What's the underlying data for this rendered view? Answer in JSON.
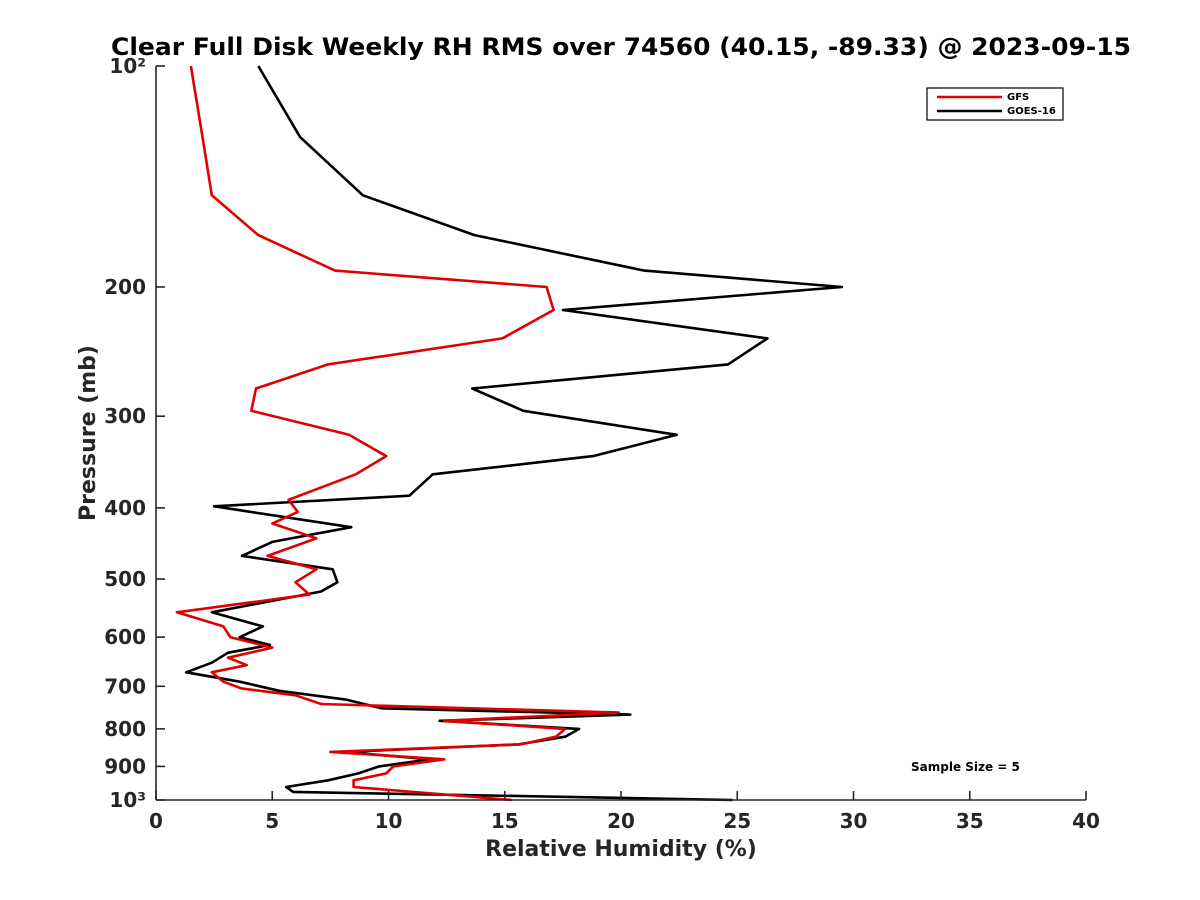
{
  "chart_data": {
    "type": "line",
    "title": "Clear Full Disk Weekly RH RMS over 74560 (40.15, -89.33) @ 2023-09-15",
    "xlabel": "Relative Humidity (%)",
    "ylabel": "Pressure (mb)",
    "xlim": [
      0,
      40
    ],
    "ylim": [
      100,
      1000
    ],
    "y_scale": "log",
    "y_reversed": true,
    "x_ticks": [
      0,
      5,
      10,
      15,
      20,
      25,
      30,
      35,
      40
    ],
    "x_tick_labels": [
      "0",
      "5",
      "10",
      "15",
      "20",
      "25",
      "30",
      "35",
      "40"
    ],
    "y_ticks": [
      100,
      200,
      300,
      400,
      500,
      600,
      700,
      800,
      900,
      1000
    ],
    "y_tick_labels": [
      "10²",
      "200",
      "300",
      "400",
      "500",
      "600",
      "700",
      "800",
      "900",
      "10³"
    ],
    "grid": false,
    "legend_position": "top-right",
    "annotation": "Sample Size = 5",
    "series": [
      {
        "name": "GFS",
        "color": "#e00000",
        "x": [
          1.5,
          2.0,
          2.4,
          4.4,
          7.7,
          16.8,
          17.1,
          14.9,
          7.4,
          4.3,
          4.1,
          8.3,
          9.9,
          8.6,
          5.7,
          6.1,
          5.0,
          6.9,
          4.8,
          6.9,
          6.0,
          6.6,
          0.9,
          2.9,
          3.2,
          5.0,
          3.1,
          3.9,
          2.4,
          2.9,
          3.7,
          6.0,
          7.1,
          19.9,
          12.4,
          17.6,
          17.2,
          15.7,
          7.5,
          12.4,
          10.2,
          9.9,
          8.5,
          8.5,
          15.3
        ],
        "y": [
          100,
          125,
          150,
          170,
          190,
          200,
          215,
          235,
          255,
          275,
          295,
          318,
          340,
          360,
          390,
          405,
          420,
          440,
          465,
          485,
          505,
          525,
          555,
          580,
          600,
          620,
          640,
          655,
          670,
          690,
          705,
          720,
          740,
          760,
          780,
          800,
          820,
          840,
          860,
          880,
          900,
          920,
          940,
          960,
          1000
        ]
      },
      {
        "name": "GOES-16",
        "color": "#000000",
        "x": [
          4.4,
          6.2,
          8.9,
          13.7,
          21.0,
          29.5,
          17.5,
          26.3,
          24.6,
          13.6,
          15.8,
          22.4,
          18.8,
          11.9,
          10.9,
          2.5,
          8.4,
          5.0,
          3.7,
          7.6,
          7.8,
          7.1,
          2.4,
          4.6,
          3.6,
          4.9,
          3.1,
          2.4,
          1.3,
          3.6,
          5.3,
          8.2,
          9.7,
          20.4,
          12.2,
          18.2,
          17.6,
          15.6,
          8.1,
          11.8,
          9.6,
          8.7,
          7.4,
          5.6,
          5.9,
          24.8
        ],
        "y": [
          100,
          125,
          150,
          170,
          190,
          200,
          215,
          235,
          255,
          275,
          295,
          318,
          340,
          360,
          385,
          398,
          425,
          445,
          465,
          485,
          505,
          520,
          555,
          580,
          600,
          615,
          630,
          650,
          670,
          690,
          710,
          730,
          750,
          765,
          780,
          800,
          820,
          840,
          860,
          880,
          900,
          920,
          940,
          960,
          975,
          1000
        ]
      }
    ]
  }
}
